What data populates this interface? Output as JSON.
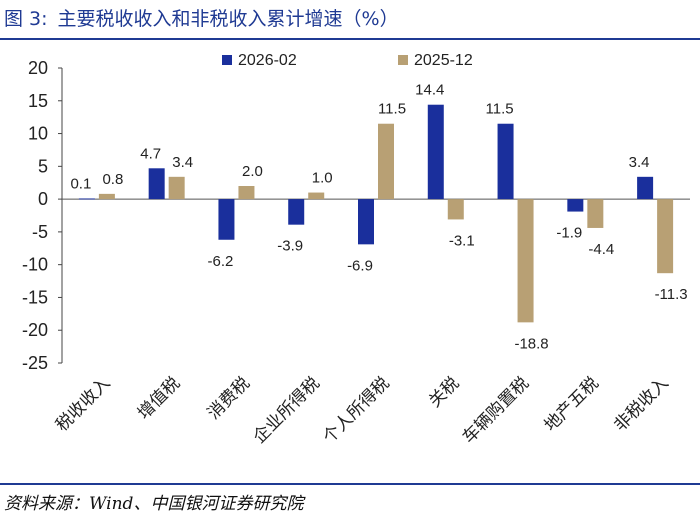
{
  "header": {
    "prefix": "图 3:",
    "title": "主要税收收入和非税收入累计增速（%）"
  },
  "footer": {
    "source": "资料来源：Wind、中国银河证券研究院"
  },
  "colors": {
    "series_2026": "#1a2f9c",
    "series_2025": "#b8a074",
    "accent": "#1f3a93"
  },
  "chart_data": {
    "type": "bar",
    "categories": [
      "税收收入",
      "增值税",
      "消费税",
      "企业所得税",
      "个人所得税",
      "关税",
      "车辆购置税",
      "地产五税",
      "非税收入"
    ],
    "series": [
      {
        "name": "2026-02",
        "values": [
          0.1,
          4.7,
          -6.2,
          -3.9,
          -6.9,
          14.4,
          11.5,
          -1.9,
          3.4
        ],
        "labels": [
          "0.1",
          "4.7",
          "-6.2",
          "-3.9",
          "-6.9",
          "14.4",
          "11.5",
          "-1.9",
          "3.4"
        ]
      },
      {
        "name": "2025-12",
        "values": [
          0.8,
          3.4,
          2.0,
          1.0,
          11.5,
          -3.1,
          -18.8,
          -4.4,
          -11.3
        ],
        "labels": [
          "0.8",
          "3.4",
          "2.0",
          "1.0",
          "11.5",
          "-3.1",
          "-18.8",
          "-4.4",
          "-11.3"
        ]
      }
    ],
    "ylim": [
      -25,
      20
    ],
    "yticks": [
      20,
      15,
      10,
      5,
      0,
      -5,
      -10,
      -15,
      -20,
      -25
    ],
    "legend_position": "top-center",
    "grid": false,
    "title": "",
    "xlabel": "",
    "ylabel": ""
  }
}
